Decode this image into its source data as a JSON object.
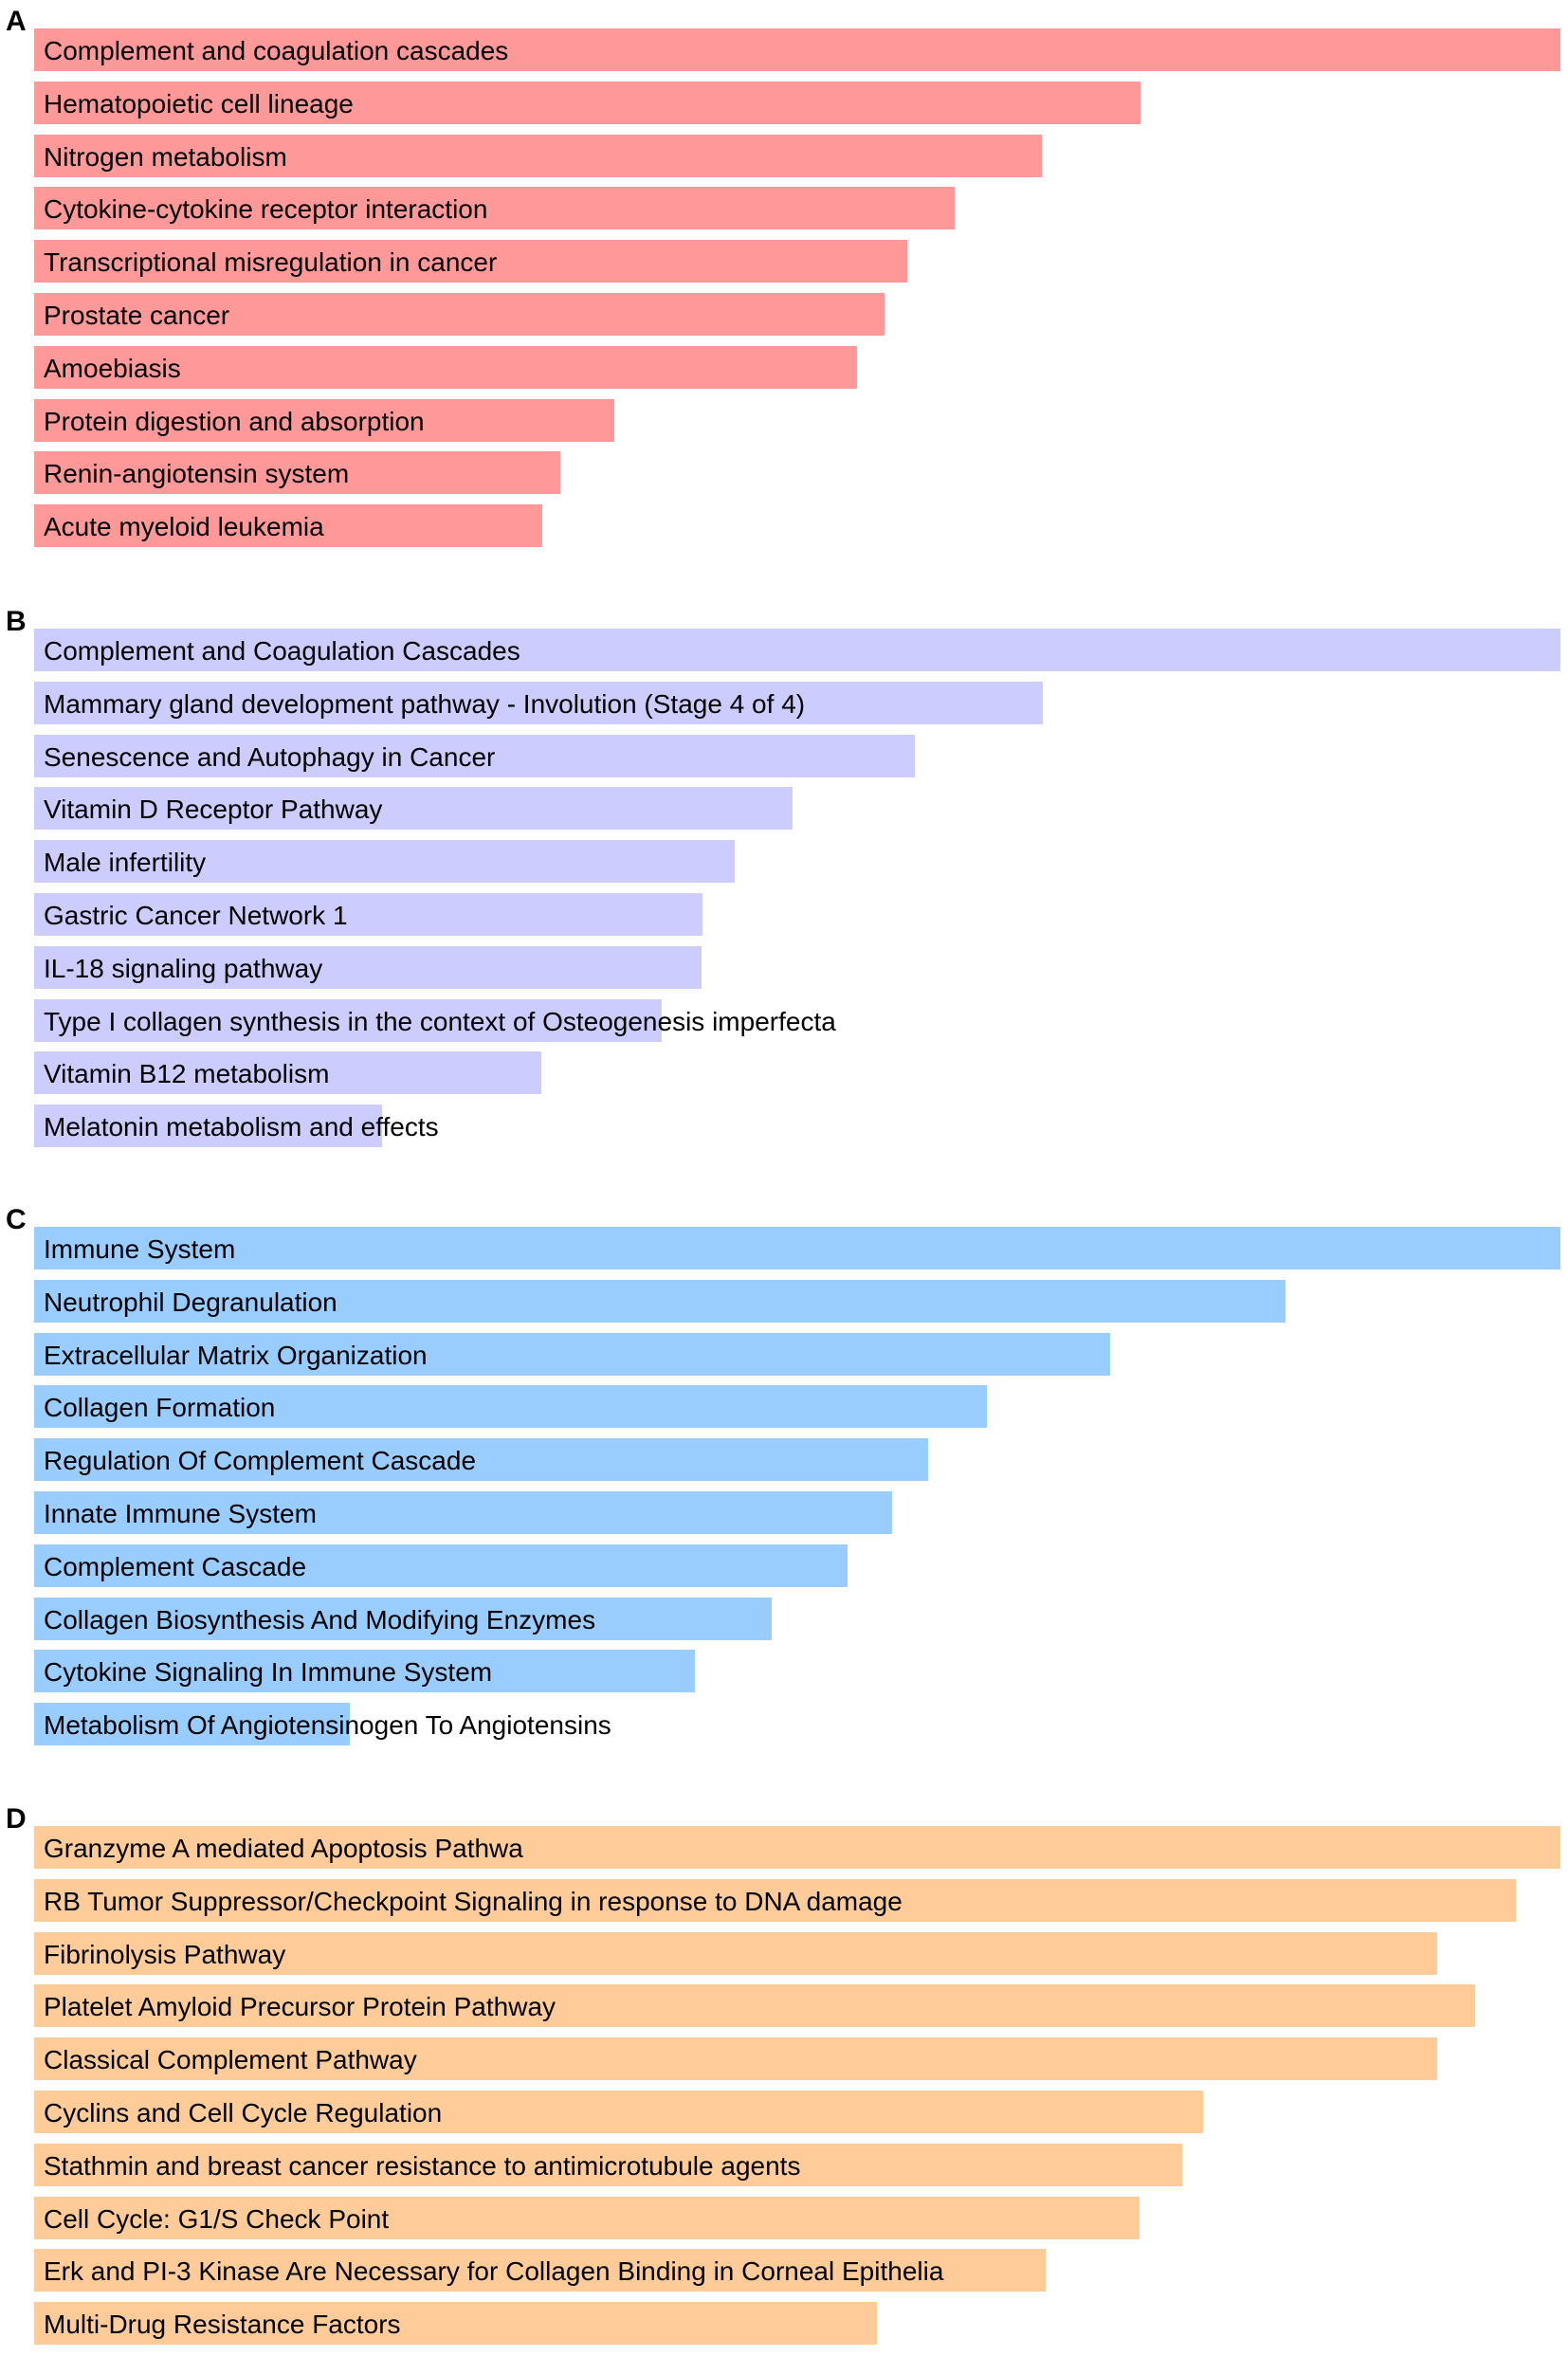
{
  "chart_data": [
    {
      "type": "bar",
      "orientation": "horizontal",
      "panel": "A",
      "color": "#FF9999",
      "xlim": [
        0,
        1
      ],
      "categories": [
        "Complement and coagulation cascades",
        "Hematopoietic cell lineage",
        "Nitrogen metabolism",
        "Cytokine-cytokine receptor interaction",
        "Transcriptional misregulation in cancer",
        "Prostate cancer",
        "Amoebiasis",
        "Protein digestion and absorption",
        "Renin-angiotensin system",
        "Acute myeloid leukemia"
      ],
      "values": [
        1.0,
        0.725,
        0.66,
        0.603,
        0.572,
        0.557,
        0.539,
        0.38,
        0.345,
        0.333
      ]
    },
    {
      "type": "bar",
      "orientation": "horizontal",
      "panel": "B",
      "color": "#CCCCFF",
      "xlim": [
        0,
        1
      ],
      "categories": [
        "Complement and Coagulation Cascades",
        "Mammary gland development pathway - Involution (Stage 4 of 4)",
        "Senescence and Autophagy in Cancer",
        "Vitamin D Receptor Pathway",
        "Male infertility",
        "Gastric Cancer Network 1",
        "IL-18 signaling pathway",
        "Type I collagen synthesis in the context of Osteogenesis imperfecta",
        "Vitamin B12 metabolism",
        "Melatonin metabolism and effects"
      ],
      "values": [
        1.0,
        0.661,
        0.577,
        0.497,
        0.459,
        0.438,
        0.437,
        0.411,
        0.332,
        0.228
      ]
    },
    {
      "type": "bar",
      "orientation": "horizontal",
      "panel": "C",
      "color": "#99CCFF",
      "xlim": [
        0,
        1
      ],
      "categories": [
        "Immune System",
        "Neutrophil Degranulation",
        "Extracellular Matrix Organization",
        "Collagen Formation",
        "Regulation Of Complement Cascade",
        "Innate Immune System",
        "Complement Cascade",
        "Collagen Biosynthesis And Modifying Enzymes",
        "Cytokine Signaling In Immune System",
        "Metabolism Of Angiotensinogen To Angiotensins"
      ],
      "values": [
        1.0,
        0.82,
        0.705,
        0.624,
        0.586,
        0.562,
        0.533,
        0.483,
        0.433,
        0.207
      ]
    },
    {
      "type": "bar",
      "orientation": "horizontal",
      "panel": "D",
      "color": "#FFCC99",
      "xlim": [
        0,
        1
      ],
      "categories": [
        "Granzyme A mediated Apoptosis Pathwa",
        "RB Tumor Suppressor/Checkpoint Signaling in response to DNA damage",
        " Fibrinolysis Pathway",
        "Platelet Amyloid Precursor Protein Pathway",
        "Classical Complement Pathway",
        "Cyclins and Cell Cycle Regulation",
        "Stathmin and breast cancer resistance to antimicrotubule agents",
        "Cell Cycle: G1/S Check Point",
        "Erk and PI-3 Kinase Are Necessary for Collagen Binding in Corneal Epithelia",
        "Multi-Drug Resistance Factors"
      ],
      "values": [
        1.0,
        0.971,
        0.919,
        0.944,
        0.919,
        0.766,
        0.752,
        0.724,
        0.663,
        0.552
      ]
    }
  ]
}
